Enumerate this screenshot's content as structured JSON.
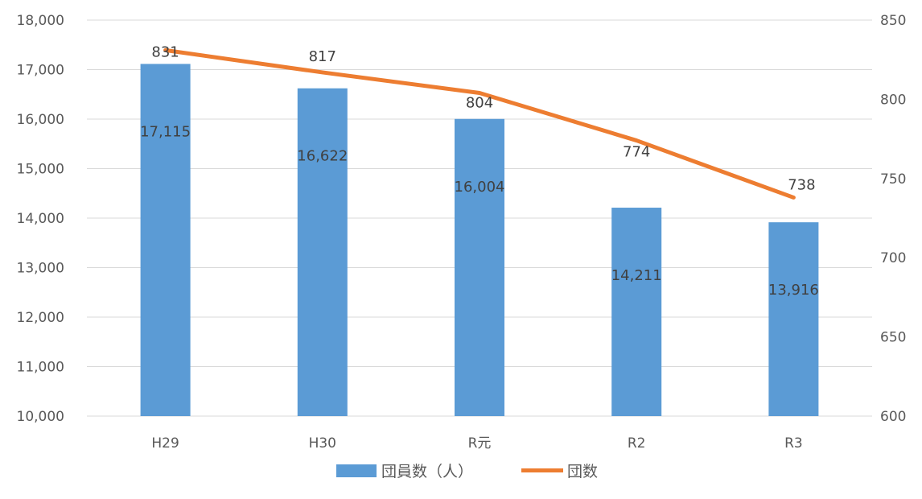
{
  "chart_data": {
    "type": "bar",
    "categories": [
      "H29",
      "H30",
      "R元",
      "R2",
      "R3"
    ],
    "series": [
      {
        "name": "団員数（人）",
        "type": "bar",
        "axis": "left",
        "values": [
          17115,
          16622,
          16004,
          14211,
          13916
        ],
        "labels": [
          "17,115",
          "16,622",
          "16,004",
          "14,211",
          "13,916"
        ],
        "color": "#5B9BD5"
      },
      {
        "name": "団数",
        "type": "line",
        "axis": "right",
        "values": [
          831,
          817,
          804,
          774,
          738
        ],
        "labels": [
          "831",
          "817",
          "804",
          "774",
          "738"
        ],
        "color": "#ED7D31"
      }
    ],
    "y_left": {
      "min": 10000,
      "max": 18000,
      "step": 1000,
      "ticks": [
        "10,000",
        "11,000",
        "12,000",
        "13,000",
        "14,000",
        "15,000",
        "16,000",
        "17,000",
        "18,000"
      ]
    },
    "y_right": {
      "min": 600,
      "max": 850,
      "step": 50,
      "ticks": [
        "600",
        "650",
        "700",
        "750",
        "800",
        "850"
      ]
    },
    "grid": true,
    "legend_position": "bottom",
    "title": "",
    "xlabel": "",
    "ylabel": ""
  }
}
